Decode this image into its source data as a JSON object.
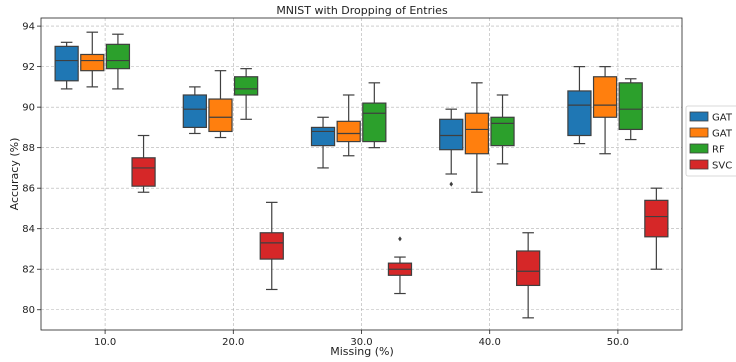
{
  "chart_data": {
    "type": "boxplot",
    "title": "MNIST with Dropping of Entries",
    "xlabel": "Missing (%)",
    "ylabel": "Accuracy (%)",
    "categories": [
      "10.0",
      "20.0",
      "30.0",
      "40.0",
      "50.0"
    ],
    "ylim": [
      79.0,
      94.4
    ],
    "yticks": [
      80,
      82,
      84,
      86,
      88,
      90,
      92,
      94
    ],
    "grid": true,
    "legend_position": "right",
    "series": [
      {
        "name": "GAT",
        "color": "#1f77b4",
        "boxes": [
          {
            "whislo": 90.9,
            "q1": 91.3,
            "med": 92.3,
            "q3": 93.0,
            "whishi": 93.2,
            "fliers": []
          },
          {
            "whislo": 88.7,
            "q1": 89.0,
            "med": 89.9,
            "q3": 90.6,
            "whishi": 91.0,
            "fliers": []
          },
          {
            "whislo": 87.0,
            "q1": 88.1,
            "med": 88.8,
            "q3": 89.0,
            "whishi": 89.5,
            "fliers": []
          },
          {
            "whislo": 86.7,
            "q1": 87.9,
            "med": 88.6,
            "q3": 89.4,
            "whishi": 89.9,
            "fliers": [
              86.2
            ]
          },
          {
            "whislo": 88.2,
            "q1": 88.6,
            "med": 90.1,
            "q3": 90.8,
            "whishi": 92.0,
            "fliers": []
          }
        ]
      },
      {
        "name": "GAT",
        "color": "#ff7f0e",
        "boxes": [
          {
            "whislo": 91.0,
            "q1": 91.8,
            "med": 92.3,
            "q3": 92.6,
            "whishi": 93.7,
            "fliers": []
          },
          {
            "whislo": 88.5,
            "q1": 88.8,
            "med": 89.5,
            "q3": 90.4,
            "whishi": 91.8,
            "fliers": []
          },
          {
            "whislo": 87.6,
            "q1": 88.3,
            "med": 88.7,
            "q3": 89.3,
            "whishi": 90.6,
            "fliers": []
          },
          {
            "whislo": 85.8,
            "q1": 87.7,
            "med": 88.9,
            "q3": 89.7,
            "whishi": 91.2,
            "fliers": []
          },
          {
            "whislo": 87.7,
            "q1": 89.5,
            "med": 90.1,
            "q3": 91.5,
            "whishi": 92.0,
            "fliers": []
          }
        ]
      },
      {
        "name": "RF",
        "color": "#2ca02c",
        "boxes": [
          {
            "whislo": 90.9,
            "q1": 91.9,
            "med": 92.3,
            "q3": 93.1,
            "whishi": 93.6,
            "fliers": []
          },
          {
            "whislo": 89.4,
            "q1": 90.6,
            "med": 90.9,
            "q3": 91.5,
            "whishi": 91.9,
            "fliers": []
          },
          {
            "whislo": 88.0,
            "q1": 88.3,
            "med": 89.7,
            "q3": 90.2,
            "whishi": 91.2,
            "fliers": []
          },
          {
            "whislo": 87.2,
            "q1": 88.1,
            "med": 89.2,
            "q3": 89.5,
            "whishi": 90.6,
            "fliers": []
          },
          {
            "whislo": 88.4,
            "q1": 88.9,
            "med": 89.9,
            "q3": 91.2,
            "whishi": 91.4,
            "fliers": []
          }
        ]
      },
      {
        "name": "SVC",
        "color": "#d62728",
        "boxes": [
          {
            "whislo": 85.8,
            "q1": 86.1,
            "med": 87.0,
            "q3": 87.5,
            "whishi": 88.6,
            "fliers": []
          },
          {
            "whislo": 81.0,
            "q1": 82.5,
            "med": 83.3,
            "q3": 83.8,
            "whishi": 85.3,
            "fliers": []
          },
          {
            "whislo": 80.8,
            "q1": 81.7,
            "med": 82.0,
            "q3": 82.3,
            "whishi": 82.6,
            "fliers": [
              83.5
            ]
          },
          {
            "whislo": 79.6,
            "q1": 81.2,
            "med": 81.9,
            "q3": 82.9,
            "whishi": 83.8,
            "fliers": []
          },
          {
            "whislo": 82.0,
            "q1": 83.6,
            "med": 84.6,
            "q3": 85.4,
            "whishi": 86.0,
            "fliers": []
          }
        ]
      }
    ]
  }
}
